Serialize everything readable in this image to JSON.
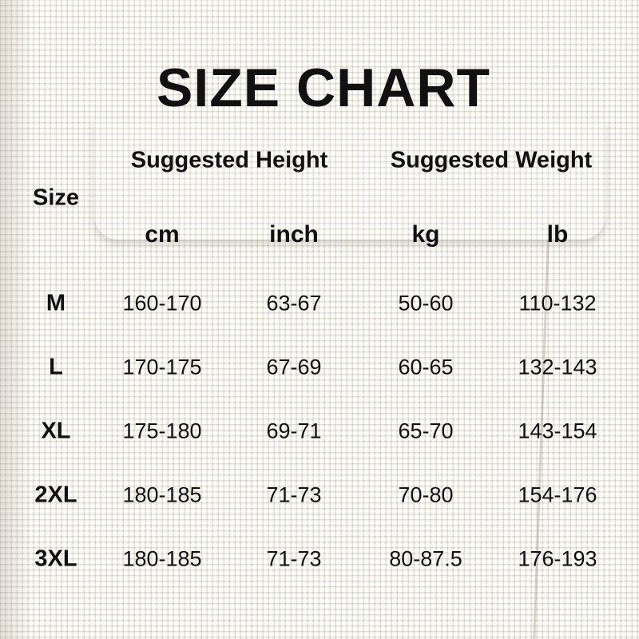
{
  "title": "SIZE CHART",
  "headers": {
    "size": "Size",
    "height_group": "Suggested Height",
    "weight_group": "Suggested Weight",
    "units": [
      "cm",
      "inch",
      "kg",
      "lb"
    ]
  },
  "rows": [
    {
      "size": "M",
      "values": [
        "160-170",
        "63-67",
        "50-60",
        "110-132"
      ]
    },
    {
      "size": "L",
      "values": [
        "170-175",
        "67-69",
        "60-65",
        "132-143"
      ]
    },
    {
      "size": "XL",
      "values": [
        "175-180",
        "69-71",
        "65-70",
        "143-154"
      ]
    },
    {
      "size": "2XL",
      "values": [
        "180-185",
        "71-73",
        "70-80",
        "154-176"
      ]
    },
    {
      "size": "3XL",
      "values": [
        "180-185",
        "71-73",
        "80-87.5",
        "176-193"
      ]
    }
  ]
}
